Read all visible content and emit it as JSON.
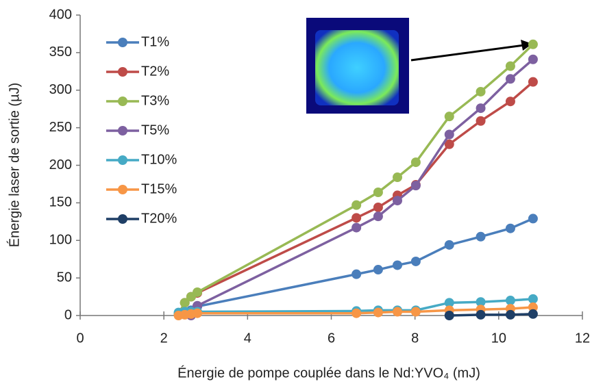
{
  "chart_data": {
    "type": "line",
    "xlabel": "Énergie de pompe couplée dans le Nd:YVO₄ (mJ)",
    "ylabel": "Énergie laser de sortie (µJ)",
    "x": [
      2.35,
      2.5,
      2.65,
      2.8,
      6.6,
      7.12,
      7.58,
      8.02,
      8.82,
      9.57,
      10.28,
      10.82
    ],
    "series": [
      {
        "name": "T1%",
        "color": "#4a7ebb",
        "values": [
          2,
          5,
          7,
          12,
          55,
          61,
          67,
          72,
          94,
          105,
          116,
          129
        ]
      },
      {
        "name": "T2%",
        "color": "#be4b48",
        "values": [
          2,
          17,
          25,
          30,
          130,
          144,
          160,
          174,
          228,
          259,
          285,
          311
        ]
      },
      {
        "name": "T3%",
        "color": "#98b954",
        "values": [
          2,
          17,
          25,
          31,
          147,
          164,
          184,
          204,
          265,
          298,
          332,
          361
        ]
      },
      {
        "name": "T5%",
        "color": "#7d60a0",
        "values": [
          null,
          5,
          0,
          13,
          117,
          132,
          153,
          173,
          241,
          276,
          315,
          341
        ]
      },
      {
        "name": "T10%",
        "color": "#46aac5",
        "values": [
          4,
          5,
          5,
          5,
          6,
          7,
          7,
          7,
          17,
          18,
          20,
          22
        ]
      },
      {
        "name": "T15%",
        "color": "#f79646",
        "values": [
          0,
          1,
          2,
          3,
          3,
          4,
          5,
          5,
          7,
          8,
          9,
          11
        ]
      },
      {
        "name": "T20%",
        "color": "#1f3f66",
        "values": [
          null,
          null,
          null,
          null,
          null,
          null,
          null,
          null,
          0,
          1,
          1,
          2
        ]
      }
    ],
    "xlim": [
      0,
      12
    ],
    "xticks": [
      0,
      2,
      4,
      6,
      8,
      10,
      12
    ],
    "ylim": [
      0,
      400
    ],
    "yticks": [
      0,
      50,
      100,
      150,
      200,
      250,
      300,
      350,
      400
    ],
    "grid": false
  }
}
